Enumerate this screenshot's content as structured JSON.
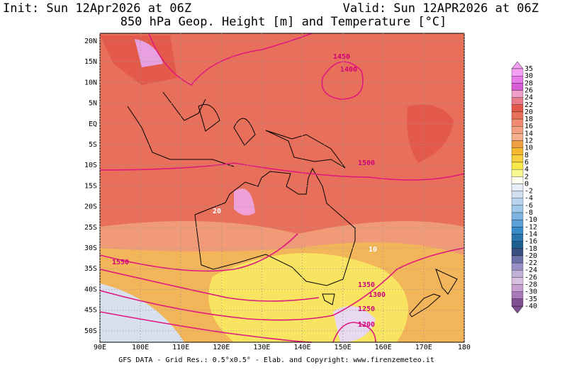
{
  "header": {
    "init": "Init: Sun 12Apr2026 at 06Z",
    "valid": "Valid: Sun 12APR2026 at 06Z",
    "title": "850 hPa Geop. Height [m] and Temperature [°C]"
  },
  "map": {
    "lat_labels": [
      "20N",
      "15N",
      "10N",
      "5N",
      "EQ",
      "5S",
      "10S",
      "15S",
      "20S",
      "25S",
      "30S",
      "35S",
      "40S",
      "45S",
      "50S"
    ],
    "lon_labels": [
      "90E",
      "100E",
      "110E",
      "120E",
      "130E",
      "140E",
      "150E",
      "160E",
      "170E",
      "180"
    ],
    "contour_labels": [
      "1500",
      "1450",
      "1400",
      "1350",
      "1300",
      "1250",
      "1200",
      "1550",
      "20",
      "10"
    ]
  },
  "colorbar": {
    "labels": [
      "35",
      "30",
      "28",
      "26",
      "24",
      "22",
      "20",
      "18",
      "16",
      "14",
      "12",
      "10",
      "8",
      "6",
      "4",
      "2",
      "0",
      "-2",
      "-4",
      "-6",
      "-8",
      "-10",
      "-12",
      "-14",
      "-16",
      "-18",
      "-20",
      "-22",
      "-24",
      "-26",
      "-28",
      "-30",
      "-35",
      "-40"
    ],
    "colors": [
      "#f5a0f5",
      "#e77be7",
      "#d75ad7",
      "#f0a0c8",
      "#e87a8a",
      "#e45a4a",
      "#e8705a",
      "#f08a70",
      "#f4a080",
      "#f6b090",
      "#f0a040",
      "#f5b830",
      "#f8d040",
      "#f8e848",
      "#fafa90",
      "#fffff0",
      "#e8eef8",
      "#d0e0f0",
      "#b8d4ee",
      "#a0c8ea",
      "#80b4e0",
      "#5ca0d8",
      "#3a8cc8",
      "#2a74b0",
      "#206090",
      "#3a5080",
      "#6a70a8",
      "#9a90c8",
      "#c0b0d8",
      "#d8c0e0",
      "#c8a0d0",
      "#a878b8",
      "#805090"
    ]
  },
  "footer": "GFS DATA - Grid Res.: 0.5°x0.5° - Elab. and Copyright: www.firenzemeteo.it"
}
